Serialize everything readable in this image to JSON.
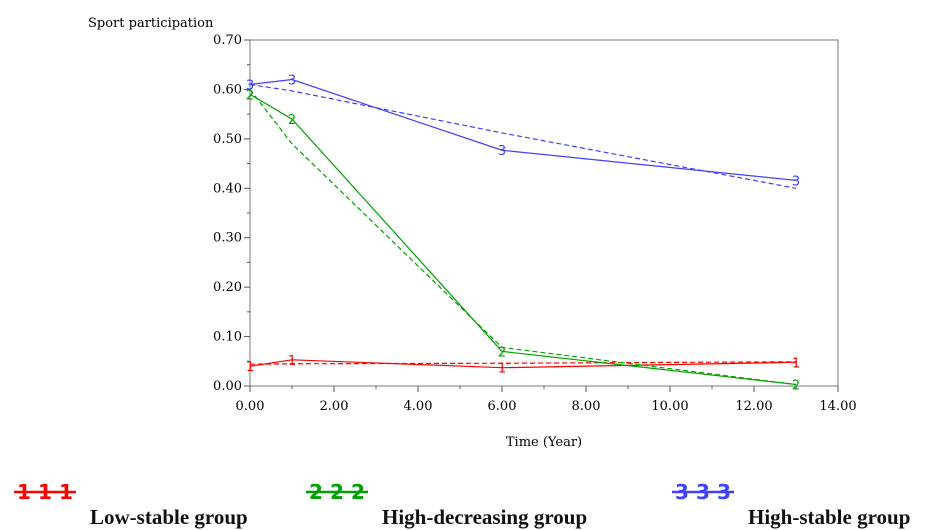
{
  "chart_data": {
    "type": "line",
    "ylabel": "Sport participation",
    "xlabel": "Time (Year)",
    "xlim": [
      0,
      14
    ],
    "ylim": [
      0,
      0.7
    ],
    "x_ticks": [
      "0.00",
      "2.00",
      "4.00",
      "6.00",
      "8.00",
      "10.00",
      "12.00",
      "14.00"
    ],
    "y_ticks": [
      "0.00",
      "0.10",
      "0.20",
      "0.30",
      "0.40",
      "0.50",
      "0.60",
      "0.70"
    ],
    "grid": false,
    "legend_position": "bottom",
    "series": [
      {
        "name": "Low-stable group",
        "marker": "1",
        "color": "#ff0000",
        "observed": {
          "x": [
            0,
            1,
            6,
            13
          ],
          "y": [
            0.04,
            0.053,
            0.037,
            0.048
          ]
        },
        "fitted": {
          "x": [
            0,
            1,
            6,
            13
          ],
          "y": [
            0.044,
            0.045,
            0.046,
            0.049
          ]
        }
      },
      {
        "name": "High-decreasing group",
        "marker": "2",
        "color": "#00a000",
        "observed": {
          "x": [
            0,
            1,
            6,
            13
          ],
          "y": [
            0.59,
            0.54,
            0.07,
            0.003
          ]
        },
        "fitted": {
          "x": [
            0,
            1,
            6,
            13
          ],
          "y": [
            0.6,
            0.49,
            0.078,
            0.003
          ]
        }
      },
      {
        "name": "High-stable group",
        "marker": "3",
        "color": "#4040ff",
        "observed": {
          "x": [
            0,
            1,
            6,
            13
          ],
          "y": [
            0.61,
            0.62,
            0.477,
            0.416
          ]
        },
        "fitted": {
          "x": [
            0,
            1,
            6,
            13
          ],
          "y": [
            0.61,
            0.597,
            0.512,
            0.4
          ]
        }
      }
    ]
  }
}
